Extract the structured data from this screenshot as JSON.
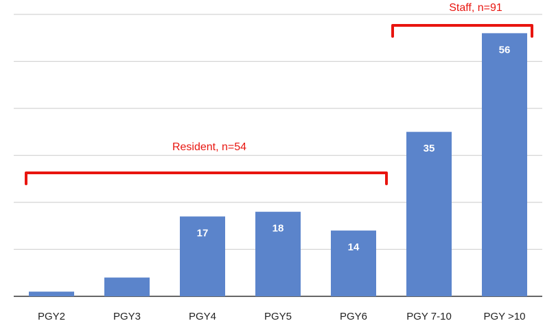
{
  "chart_data": {
    "type": "bar",
    "categories": [
      "PGY2",
      "PGY3",
      "PGY4",
      "PGY5",
      "PGY6",
      "PGY 7-10",
      "PGY >10"
    ],
    "values": [
      1,
      4,
      17,
      18,
      14,
      35,
      56
    ],
    "color": "#5b84cb",
    "ylim": [
      0,
      60
    ],
    "yticks": [
      0,
      10,
      20,
      30,
      40,
      50,
      60
    ],
    "grid": true,
    "annotations": [
      {
        "text": "Resident, n=54"
      },
      {
        "text": "Staff, n=91"
      }
    ],
    "annotation_color": "#e8150f"
  }
}
